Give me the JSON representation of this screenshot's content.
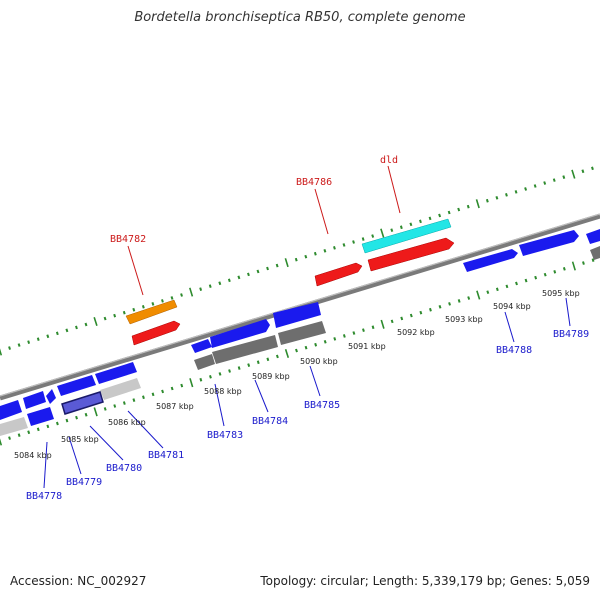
{
  "title": "Bordetella bronchiseptica RB50, complete genome",
  "footer": {
    "accession": "Accession: NC_002927",
    "summary": "Topology: circular; Length: 5,339,179 bp; Genes: 5,059"
  },
  "colors": {
    "gene_blue": "#1a1aee",
    "gene_red": "#ee1a1a",
    "gene_orange": "#f08c00",
    "gene_cyan": "#22e6e6",
    "gene_grey": "#6e6e6e",
    "gene_lightgrey": "#c8c8c8",
    "tick_green": "#2e8b2e",
    "label_blue": "#1a1acc",
    "label_red": "#cc1a1a"
  },
  "kbp_labels": [
    "5084 kbp",
    "5085 kbp",
    "5086 kbp",
    "5087 kbp",
    "5088 kbp",
    "5089 kbp",
    "5090 kbp",
    "5091 kbp",
    "5092 kbp",
    "5093 kbp",
    "5094 kbp",
    "5095 kbp"
  ],
  "gene_labels_upper": [
    "BB4782",
    "BB4786",
    "dld"
  ],
  "gene_labels_lower": [
    "BB4778",
    "BB4779",
    "BB4780",
    "BB4781",
    "BB4783",
    "BB4784",
    "BB4785",
    "BB4788",
    "BB4789"
  ]
}
